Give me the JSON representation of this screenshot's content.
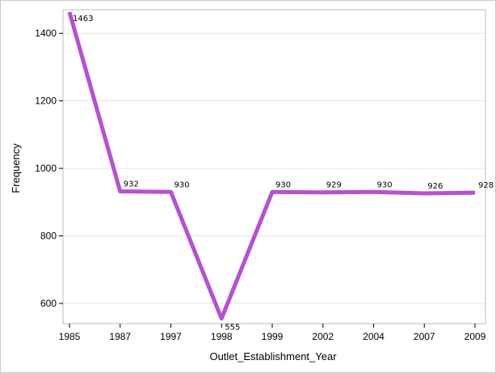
{
  "chart_data": {
    "type": "line",
    "title": "",
    "xlabel": "Outlet_Establishment_Year",
    "ylabel": "Frequency",
    "categories": [
      "1985",
      "1987",
      "1997",
      "1998",
      "1999",
      "2002",
      "2004",
      "2007",
      "2009"
    ],
    "series": [
      {
        "values": [
          1463,
          932,
          930,
          555,
          930,
          929,
          930,
          926,
          928
        ],
        "data_labels": [
          "1463",
          "932",
          "930",
          "555",
          "930",
          "929",
          "930",
          "926",
          "928"
        ],
        "color": "#b64fd6"
      }
    ],
    "ylim": [
      540,
      1470
    ],
    "yticks": [
      600,
      800,
      1000,
      1200,
      1400
    ],
    "ytick_labels": [
      "600",
      "800",
      "1000",
      "1200",
      "1400"
    ],
    "grid": "horizontal",
    "legend": "none"
  }
}
